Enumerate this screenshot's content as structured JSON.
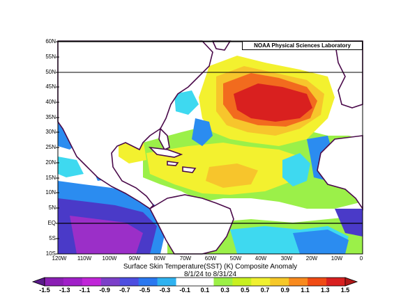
{
  "credit": "NOAA Physical Sciences Laboratory",
  "title": "Surface Skin Temperature(SST) (K) Composite Anomaly",
  "date_range": "8/1/24  to 8/31/24",
  "lat_labels": [
    "60N",
    "55N",
    "50N",
    "45N",
    "40N",
    "35N",
    "30N",
    "25N",
    "20N",
    "15N",
    "10N",
    "5N",
    "EQ",
    "5S",
    "10S"
  ],
  "lon_labels": [
    "120W",
    "110W",
    "100W",
    "90W",
    "80W",
    "70W",
    "60W",
    "50W",
    "40W",
    "30W",
    "20W",
    "10W",
    "0"
  ],
  "colorbar": {
    "labels": [
      "-1.5",
      "-1.3",
      "-1.1",
      "-0.9",
      "-0.7",
      "-0.5",
      "-0.3",
      "-0.1",
      "0.1",
      "0.3",
      "0.5",
      "0.7",
      "0.9",
      "1.1",
      "1.3",
      "1.5"
    ],
    "colors": [
      "#8a1fb4",
      "#a020c8",
      "#c026d8",
      "#7b3fc9",
      "#4d4ee0",
      "#2a78f0",
      "#2fb2f0",
      "#ffffff",
      "#ffffff",
      "#9cf046",
      "#c8f020",
      "#f0f030",
      "#f6c828",
      "#f88a1e",
      "#f04b14",
      "#d82020"
    ]
  },
  "anomaly_colors": {
    "strong_warm": "#d9201f",
    "warm": "#f26b1e",
    "mild_warm": "#f7c52c",
    "slight_warm": "#f3f12f",
    "near_zero_warm": "#9bf049",
    "near_zero": "#ffffff",
    "slight_cool": "#3ed9f0",
    "cool": "#2b8cf0",
    "cold": "#4a3ac8",
    "very_cold": "#9b2fc8"
  }
}
